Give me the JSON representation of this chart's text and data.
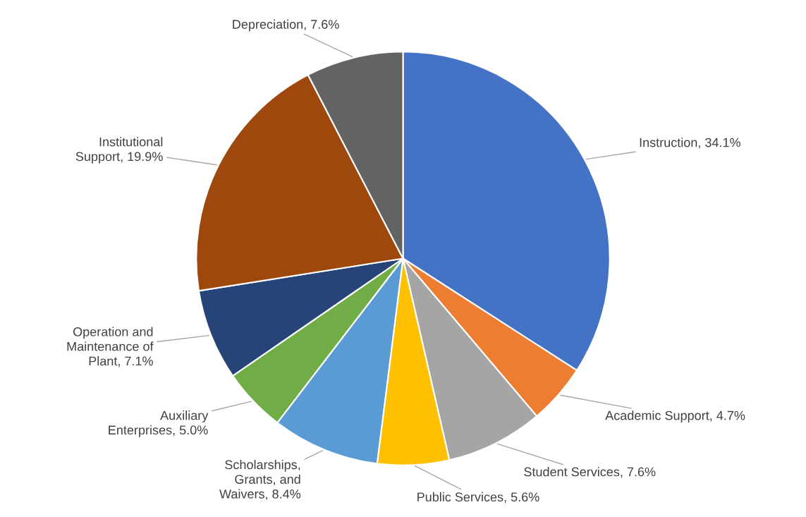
{
  "chart_data": {
    "type": "pie",
    "categories": [
      "Instruction",
      "Academic Support",
      "Student Services",
      "Public Services",
      "Scholarships, Grants, and Waivers",
      "Auxiliary Enterprises",
      "Operation and Maintenance of Plant",
      "Institutional Support",
      "Depreciation"
    ],
    "values": [
      34.1,
      4.7,
      7.6,
      5.6,
      8.4,
      5.0,
      7.1,
      19.9,
      7.6
    ],
    "value_labels": [
      "34.1%",
      "4.7%",
      "7.6%",
      "5.6%",
      "8.4%",
      "5.0%",
      "7.1%",
      "19.9%",
      "7.6%"
    ],
    "colors": [
      "#4472c4",
      "#ed7d31",
      "#a5a5a5",
      "#ffc000",
      "#5b9bd5",
      "#70ad47",
      "#264478",
      "#9e480e",
      "#636363"
    ],
    "legend": false
  }
}
